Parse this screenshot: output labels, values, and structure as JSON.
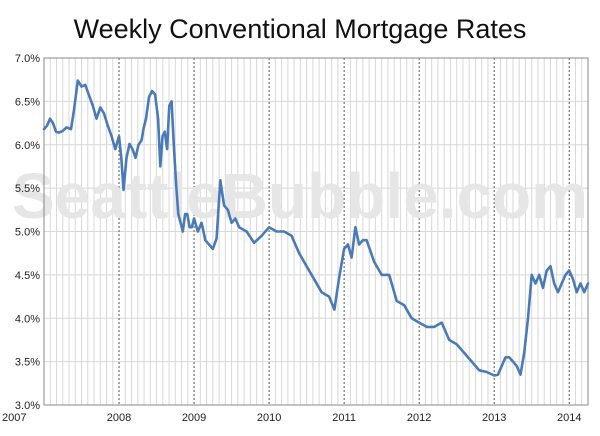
{
  "chart_data": {
    "type": "line",
    "title": "Weekly Conventional Mortgage Rates",
    "watermark": "SeattleBubble.com",
    "xlabel": "",
    "ylabel": "",
    "x_ticks": [
      "2007",
      "2008",
      "2009",
      "2010",
      "2011",
      "2012",
      "2013",
      "2014"
    ],
    "y_ticks": [
      "3.0%",
      "3.5%",
      "4.0%",
      "4.5%",
      "5.0%",
      "5.5%",
      "6.0%",
      "6.5%",
      "7.0%"
    ],
    "ylim": [
      3.0,
      7.0
    ],
    "xlim": [
      "2007-01",
      "2014-03"
    ],
    "grid": {
      "horizontal": true,
      "year_lines": "dotted",
      "month_lines": true
    },
    "colors": {
      "line": "#4a7ab8",
      "grid": "#d8d8d8",
      "year_grid": "#555555"
    },
    "series": [
      {
        "name": "",
        "x": [
          2007.0,
          2007.04,
          2007.08,
          2007.12,
          2007.16,
          2007.2,
          2007.25,
          2007.3,
          2007.36,
          2007.4,
          2007.45,
          2007.5,
          2007.55,
          2007.6,
          2007.65,
          2007.7,
          2007.75,
          2007.8,
          2007.85,
          2007.9,
          2007.95,
          2008.0,
          2008.03,
          2008.06,
          2008.1,
          2008.14,
          2008.18,
          2008.22,
          2008.26,
          2008.3,
          2008.33,
          2008.36,
          2008.4,
          2008.44,
          2008.48,
          2008.52,
          2008.55,
          2008.58,
          2008.61,
          2008.64,
          2008.67,
          2008.7,
          2008.73,
          2008.76,
          2008.79,
          2008.82,
          2008.85,
          2008.88,
          2008.91,
          2008.94,
          2008.97,
          2009.0,
          2009.05,
          2009.1,
          2009.15,
          2009.2,
          2009.25,
          2009.3,
          2009.35,
          2009.4,
          2009.45,
          2009.5,
          2009.55,
          2009.6,
          2009.7,
          2009.8,
          2009.9,
          2010.0,
          2010.1,
          2010.2,
          2010.3,
          2010.4,
          2010.5,
          2010.6,
          2010.7,
          2010.8,
          2010.87,
          2010.93,
          2011.0,
          2011.05,
          2011.1,
          2011.15,
          2011.2,
          2011.25,
          2011.3,
          2011.4,
          2011.5,
          2011.6,
          2011.7,
          2011.8,
          2011.9,
          2012.0,
          2012.1,
          2012.2,
          2012.3,
          2012.4,
          2012.5,
          2012.6,
          2012.7,
          2012.8,
          2012.9,
          2013.0,
          2013.05,
          2013.1,
          2013.15,
          2013.2,
          2013.25,
          2013.3,
          2013.35,
          2013.4,
          2013.45,
          2013.5,
          2013.55,
          2013.6,
          2013.65,
          2013.7,
          2013.75,
          2013.8,
          2013.85,
          2013.9,
          2013.95,
          2014.0,
          2014.05,
          2014.1,
          2014.15,
          2014.2,
          2014.25
        ],
        "y": [
          6.18,
          6.22,
          6.3,
          6.25,
          6.15,
          6.14,
          6.16,
          6.2,
          6.18,
          6.4,
          6.74,
          6.67,
          6.69,
          6.57,
          6.45,
          6.3,
          6.43,
          6.36,
          6.22,
          6.1,
          5.95,
          6.1,
          5.85,
          5.48,
          5.85,
          6.01,
          5.95,
          5.85,
          6.0,
          6.05,
          6.2,
          6.3,
          6.55,
          6.62,
          6.58,
          6.3,
          5.75,
          6.1,
          6.15,
          5.95,
          6.45,
          6.5,
          6.0,
          5.55,
          5.2,
          5.1,
          5.0,
          5.2,
          5.2,
          5.05,
          5.05,
          5.15,
          5.0,
          5.1,
          4.9,
          4.85,
          4.8,
          4.92,
          5.59,
          5.3,
          5.25,
          5.1,
          5.15,
          5.05,
          5.0,
          4.87,
          4.95,
          5.05,
          5.0,
          5.0,
          4.95,
          4.75,
          4.6,
          4.45,
          4.3,
          4.25,
          4.1,
          4.45,
          4.8,
          4.85,
          4.7,
          5.05,
          4.85,
          4.9,
          4.9,
          4.65,
          4.5,
          4.5,
          4.2,
          4.15,
          4.0,
          3.95,
          3.9,
          3.9,
          3.95,
          3.75,
          3.7,
          3.6,
          3.5,
          3.4,
          3.38,
          3.34,
          3.35,
          3.45,
          3.55,
          3.55,
          3.5,
          3.45,
          3.35,
          3.6,
          4.0,
          4.5,
          4.4,
          4.5,
          4.35,
          4.55,
          4.6,
          4.4,
          4.3,
          4.4,
          4.5,
          4.55,
          4.45,
          4.3,
          4.4,
          4.3,
          4.4
        ]
      }
    ]
  }
}
